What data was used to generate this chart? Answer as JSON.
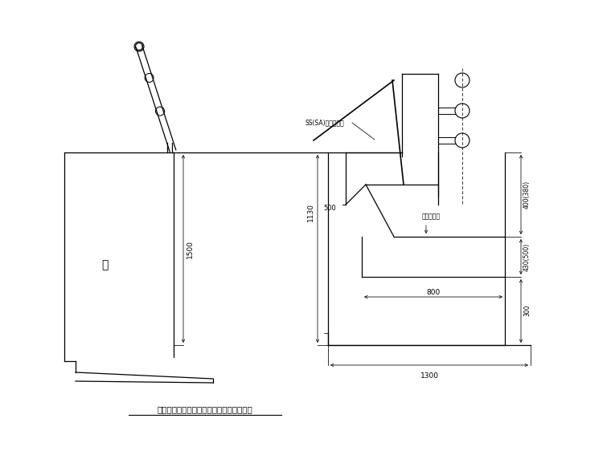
{
  "title": "挡墙上为人行道栏杆和防撞栏杆结构示意图",
  "bg_color": "#ffffff",
  "line_color": "#000000",
  "annotations": {
    "wall_label": "墙",
    "h1500": "1500",
    "h1130": "1130",
    "w1300": "1300",
    "w800": "800",
    "h300": "300",
    "h400": "400(380)",
    "h430": "430(500)",
    "guardrail": "SS(SA)级路侧护栏",
    "road_surface": "车行道铺面",
    "d500": "500"
  }
}
